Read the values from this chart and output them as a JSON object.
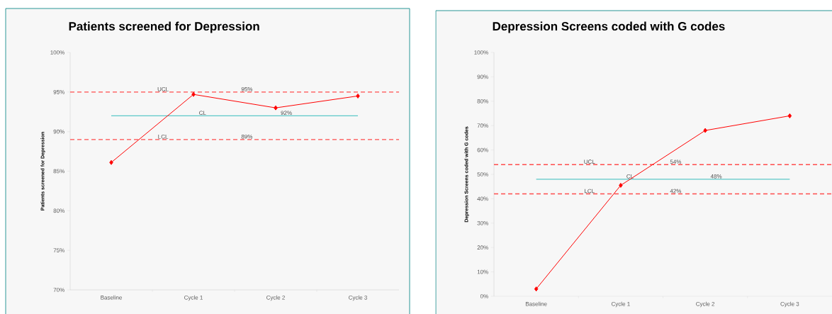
{
  "chart_data": [
    {
      "type": "line",
      "title": "Patients screened for Depression",
      "ylabel": "Patients screened for Depression",
      "categories": [
        "Baseline",
        "Cycle 1",
        "Cycle 2",
        "Cycle 3"
      ],
      "series": [
        {
          "color": "#ff0000",
          "values": [
            86.1,
            94.7,
            93.0,
            94.5
          ]
        }
      ],
      "ylim": [
        70,
        100
      ],
      "yticks": [
        {
          "value": 70,
          "label": "70%"
        },
        {
          "value": 75,
          "label": "75%"
        },
        {
          "value": 80,
          "label": "80%"
        },
        {
          "value": 85,
          "label": "85%"
        },
        {
          "value": 90,
          "label": "90%"
        },
        {
          "value": 95,
          "label": "95%"
        },
        {
          "value": 100,
          "label": "100%"
        }
      ],
      "ref_lines": [
        {
          "axis": "y",
          "value": 95,
          "label": "UCL",
          "color": "#ff4d4d",
          "line_style": "dashed"
        },
        {
          "axis": "y",
          "value": 92,
          "label": "CL",
          "color": "#5bc8c8",
          "line_style": "solid"
        },
        {
          "axis": "y",
          "value": 89,
          "label": "LCL",
          "color": "#ff4d4d",
          "line_style": "dashed"
        }
      ],
      "annotations": [
        {
          "text": "95%",
          "y": 95
        },
        {
          "text": "92%",
          "y": 92
        },
        {
          "text": "89%",
          "y": 89
        }
      ],
      "marker": "diamond",
      "line_style": "solid"
    },
    {
      "type": "line",
      "title": "Depression Screens coded with G codes",
      "ylabel": "Depression Screens coded with G codes",
      "categories": [
        "Baseline",
        "Cycle 1",
        "Cycle 2",
        "Cycle 3"
      ],
      "series": [
        {
          "color": "#ff0000",
          "values": [
            3,
            45.5,
            68,
            74
          ]
        }
      ],
      "ylim": [
        0,
        100
      ],
      "yticks": [
        {
          "value": 0,
          "label": "0%"
        },
        {
          "value": 10,
          "label": "10%"
        },
        {
          "value": 20,
          "label": "20%"
        },
        {
          "value": 30,
          "label": "30%"
        },
        {
          "value": 40,
          "label": "40%"
        },
        {
          "value": 50,
          "label": "50%"
        },
        {
          "value": 60,
          "label": "60%"
        },
        {
          "value": 70,
          "label": "70%"
        },
        {
          "value": 80,
          "label": "80%"
        },
        {
          "value": 90,
          "label": "90%"
        },
        {
          "value": 100,
          "label": "100%"
        }
      ],
      "ref_lines": [
        {
          "axis": "y",
          "value": 54,
          "label": "UCL",
          "color": "#ff4d4d",
          "line_style": "dashed"
        },
        {
          "axis": "y",
          "value": 48,
          "label": "CL",
          "color": "#5bc8c8",
          "line_style": "solid"
        },
        {
          "axis": "y",
          "value": 42,
          "label": "LCL",
          "color": "#ff4d4d",
          "line_style": "dashed"
        }
      ],
      "annotations": [
        {
          "text": "54%",
          "y": 54
        },
        {
          "text": "48%",
          "y": 48
        },
        {
          "text": "42%",
          "y": 42
        }
      ],
      "marker": "diamond",
      "line_style": "solid"
    }
  ]
}
